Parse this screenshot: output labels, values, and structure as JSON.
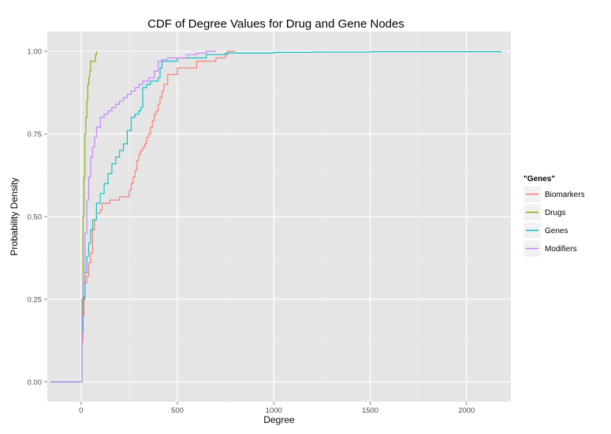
{
  "chart_data": {
    "type": "line",
    "title": "CDF of Degree Values for Drug and Gene Nodes",
    "xlabel": "Degree",
    "ylabel": "Probability Density",
    "xlim": [
      -175,
      2230
    ],
    "ylim": [
      -0.06,
      1.06
    ],
    "x_ticks": [
      0,
      500,
      1000,
      1500,
      2000
    ],
    "x_tick_labels": [
      "0",
      "500",
      "1000",
      "1500",
      "2000"
    ],
    "y_ticks": [
      0,
      0.25,
      0.5,
      0.75,
      1
    ],
    "y_tick_labels": [
      "0.00",
      "0.25",
      "0.50",
      "0.75",
      "1.00"
    ],
    "grid": true,
    "panel_background": "#e5e5e5",
    "legend": {
      "title": "\"Genes\"",
      "position": "right",
      "entries": [
        "Biomarkers",
        "Drugs",
        "Genes",
        "Modifiers"
      ]
    },
    "series": [
      {
        "name": "Biomarkers",
        "color": "#f8766d",
        "points": [
          [
            -160,
            0
          ],
          [
            0,
            0
          ],
          [
            5,
            0.12
          ],
          [
            10,
            0.2
          ],
          [
            15,
            0.26
          ],
          [
            20,
            0.3
          ],
          [
            30,
            0.32
          ],
          [
            40,
            0.36
          ],
          [
            50,
            0.39
          ],
          [
            60,
            0.46
          ],
          [
            70,
            0.49
          ],
          [
            80,
            0.51
          ],
          [
            100,
            0.52
          ],
          [
            110,
            0.54
          ],
          [
            150,
            0.55
          ],
          [
            200,
            0.56
          ],
          [
            250,
            0.58
          ],
          [
            260,
            0.6
          ],
          [
            270,
            0.62
          ],
          [
            280,
            0.64
          ],
          [
            290,
            0.67
          ],
          [
            300,
            0.69
          ],
          [
            310,
            0.7
          ],
          [
            320,
            0.71
          ],
          [
            330,
            0.72
          ],
          [
            340,
            0.74
          ],
          [
            350,
            0.75
          ],
          [
            360,
            0.77
          ],
          [
            370,
            0.79
          ],
          [
            380,
            0.81
          ],
          [
            390,
            0.82
          ],
          [
            400,
            0.84
          ],
          [
            410,
            0.86
          ],
          [
            420,
            0.88
          ],
          [
            430,
            0.9
          ],
          [
            450,
            0.93
          ],
          [
            500,
            0.95
          ],
          [
            600,
            0.97
          ],
          [
            700,
            0.98
          ],
          [
            750,
            0.99
          ],
          [
            760,
            1.0
          ],
          [
            800,
            1.0
          ]
        ]
      },
      {
        "name": "Drugs",
        "color": "#7cae00",
        "points": [
          [
            -160,
            0
          ],
          [
            0,
            0
          ],
          [
            5,
            0.25
          ],
          [
            10,
            0.5
          ],
          [
            15,
            0.62
          ],
          [
            20,
            0.75
          ],
          [
            25,
            0.8
          ],
          [
            30,
            0.85
          ],
          [
            35,
            0.9
          ],
          [
            40,
            0.92
          ],
          [
            45,
            0.94
          ],
          [
            50,
            0.97
          ],
          [
            70,
            0.97
          ],
          [
            75,
            0.99
          ],
          [
            80,
            1.0
          ]
        ]
      },
      {
        "name": "Genes",
        "color": "#00bfc4",
        "points": [
          [
            -160,
            0
          ],
          [
            0,
            0
          ],
          [
            5,
            0.15
          ],
          [
            10,
            0.25
          ],
          [
            20,
            0.33
          ],
          [
            30,
            0.38
          ],
          [
            40,
            0.42
          ],
          [
            50,
            0.46
          ],
          [
            60,
            0.49
          ],
          [
            80,
            0.54
          ],
          [
            100,
            0.57
          ],
          [
            120,
            0.6
          ],
          [
            140,
            0.63
          ],
          [
            160,
            0.66
          ],
          [
            180,
            0.68
          ],
          [
            200,
            0.7
          ],
          [
            220,
            0.72
          ],
          [
            240,
            0.76
          ],
          [
            260,
            0.8
          ],
          [
            280,
            0.81
          ],
          [
            300,
            0.82
          ],
          [
            310,
            0.83
          ],
          [
            320,
            0.89
          ],
          [
            340,
            0.9
          ],
          [
            360,
            0.91
          ],
          [
            400,
            0.92
          ],
          [
            410,
            0.95
          ],
          [
            420,
            0.97
          ],
          [
            450,
            0.97
          ],
          [
            500,
            0.98
          ],
          [
            600,
            0.98
          ],
          [
            650,
            0.99
          ],
          [
            750,
            0.995
          ],
          [
            1000,
            0.997
          ],
          [
            1200,
            0.998
          ],
          [
            1500,
            0.999
          ],
          [
            2180,
            1.0
          ]
        ]
      },
      {
        "name": "Modifiers",
        "color": "#c77cff",
        "points": [
          [
            -160,
            0
          ],
          [
            0,
            0
          ],
          [
            5,
            0.2
          ],
          [
            10,
            0.3
          ],
          [
            20,
            0.45
          ],
          [
            30,
            0.55
          ],
          [
            40,
            0.62
          ],
          [
            50,
            0.68
          ],
          [
            60,
            0.71
          ],
          [
            70,
            0.74
          ],
          [
            80,
            0.77
          ],
          [
            100,
            0.8
          ],
          [
            120,
            0.81
          ],
          [
            140,
            0.82
          ],
          [
            160,
            0.83
          ],
          [
            180,
            0.84
          ],
          [
            200,
            0.85
          ],
          [
            220,
            0.86
          ],
          [
            240,
            0.87
          ],
          [
            260,
            0.88
          ],
          [
            280,
            0.89
          ],
          [
            300,
            0.9
          ],
          [
            320,
            0.91
          ],
          [
            350,
            0.92
          ],
          [
            380,
            0.94
          ],
          [
            400,
            0.97
          ],
          [
            420,
            0.975
          ],
          [
            450,
            0.98
          ],
          [
            500,
            0.98
          ],
          [
            550,
            0.99
          ],
          [
            600,
            0.995
          ],
          [
            650,
            1.0
          ],
          [
            700,
            1.0
          ]
        ]
      }
    ]
  }
}
